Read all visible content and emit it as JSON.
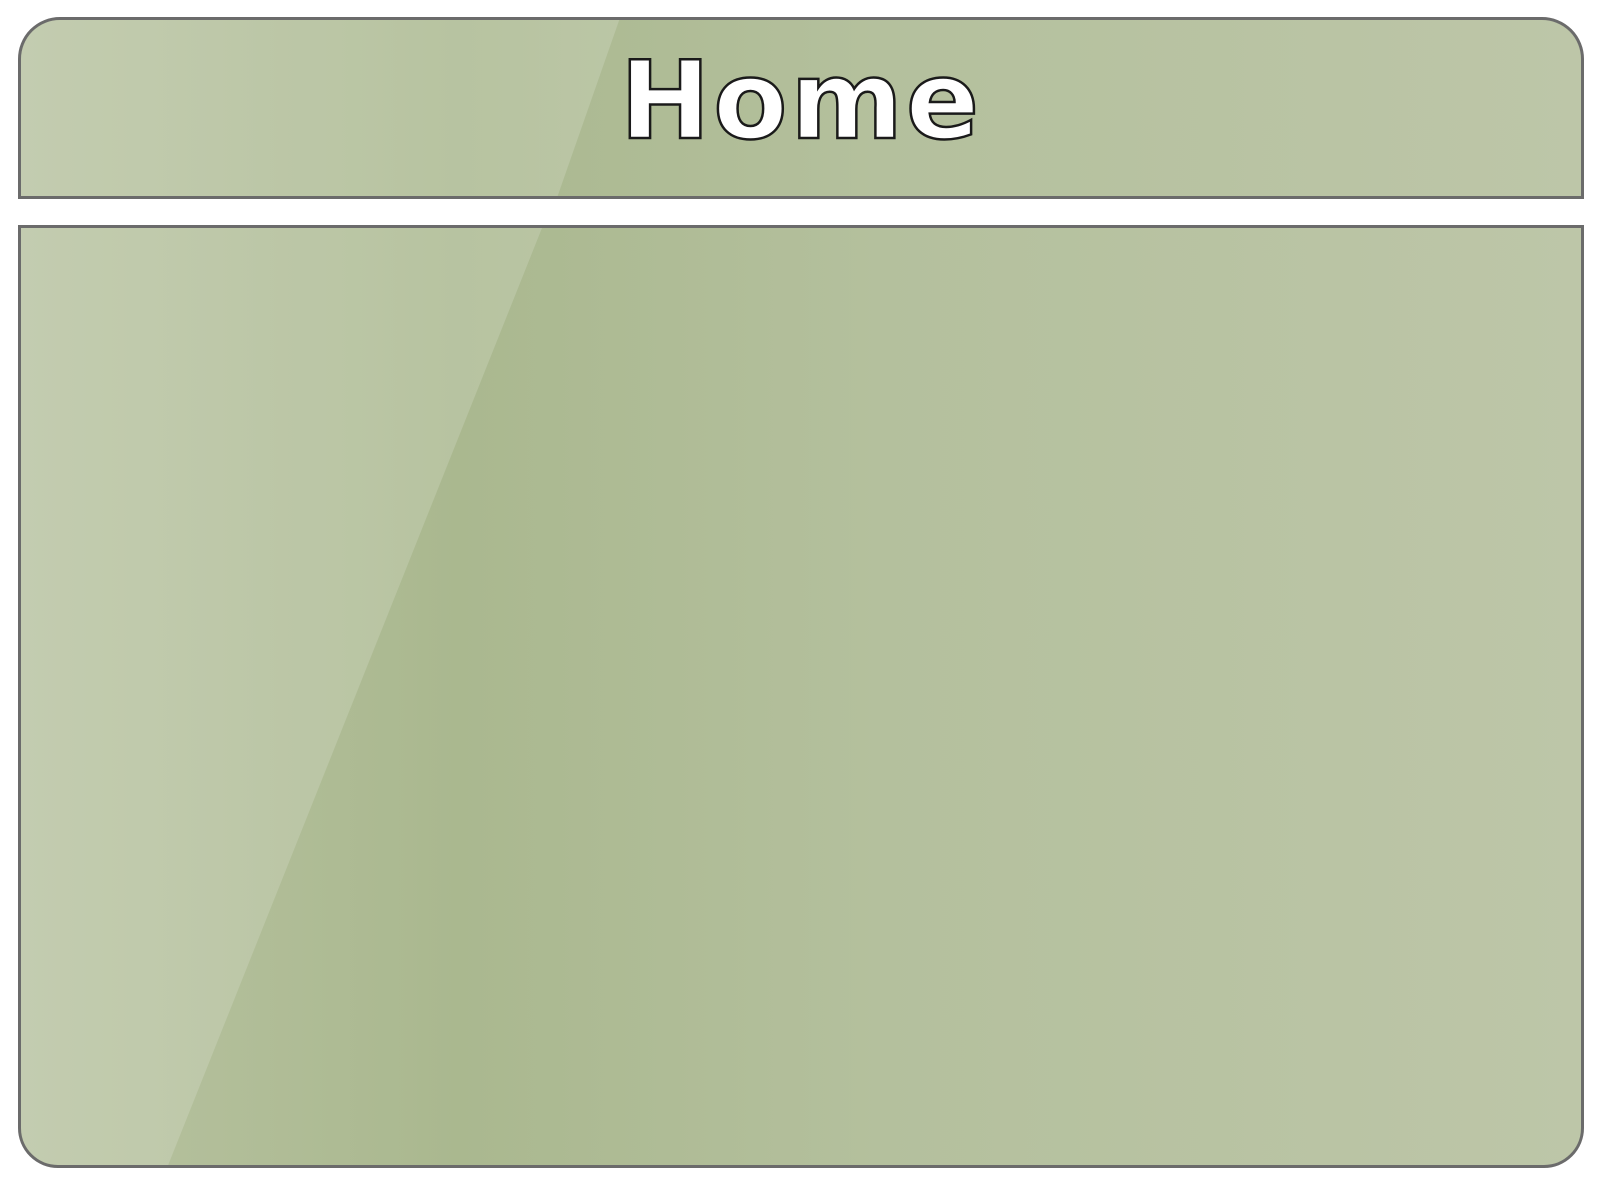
{
  "header": {
    "title": "Home"
  },
  "colors": {
    "panel_fill": "#b4c09d",
    "panel_border": "#6b6b6b",
    "title_fill": "#ffffff",
    "title_outline": "#1a1a1a",
    "background": "#ffffff"
  }
}
